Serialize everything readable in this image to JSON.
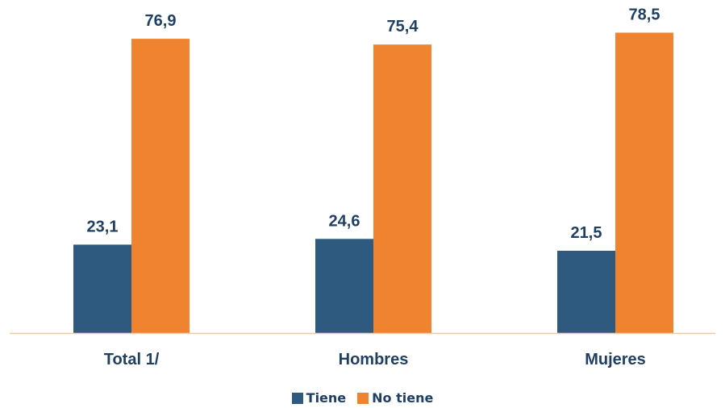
{
  "chart_data": {
    "type": "bar",
    "categories": [
      "Total 1/",
      "Hombres",
      "Mujeres"
    ],
    "series": [
      {
        "name": "Tiene",
        "color": "#2e5a80",
        "values": [
          23.1,
          24.6,
          21.5
        ],
        "labels": [
          "23,1",
          "24,6",
          "21,5"
        ]
      },
      {
        "name": "No tiene",
        "color": "#ef832f",
        "values": [
          76.9,
          75.4,
          78.5
        ],
        "labels": [
          "76,9",
          "75,4",
          "78,5"
        ]
      }
    ],
    "ylim": [
      0,
      85
    ],
    "grid": false,
    "legend_position": "bottom",
    "axis_color": "#f2c9a5"
  }
}
